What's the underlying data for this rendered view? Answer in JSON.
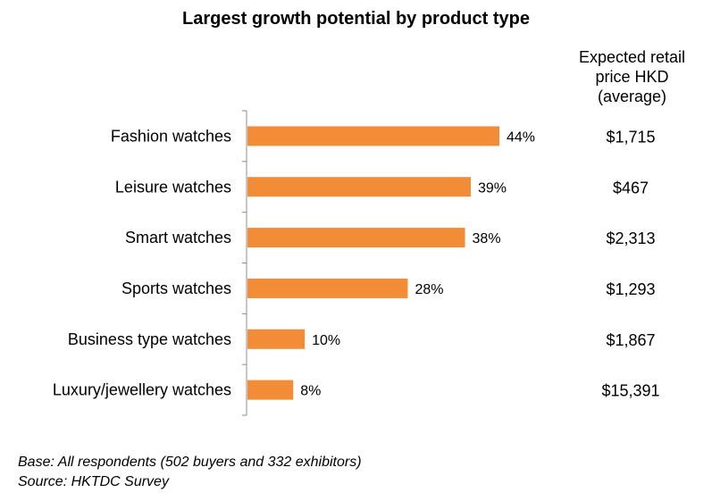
{
  "chart_data": {
    "type": "bar",
    "orientation": "horizontal",
    "title": "Largest growth potential by product type",
    "categories": [
      "Fashion watches",
      "Leisure watches",
      "Smart watches",
      "Sports watches",
      "Business type watches",
      "Luxury/jewellery watches"
    ],
    "values": [
      44,
      39,
      38,
      28,
      10,
      8
    ],
    "value_labels": [
      "44%",
      "39%",
      "38%",
      "28%",
      "10%",
      "8%"
    ],
    "unit": "%",
    "xlim": [
      0,
      50
    ],
    "grid": false,
    "bar_color": "#f28c36",
    "side_column": {
      "header_lines": [
        "Expected retail",
        "price HKD",
        "(average)"
      ],
      "values": [
        "$1,715",
        "$467",
        "$2,313",
        "$1,293",
        "$1,867",
        "$15,391"
      ]
    }
  },
  "footnotes": {
    "base": "Base: All respondents (502 buyers and 332 exhibitors)",
    "source": "Source: HKTDC Survey"
  }
}
